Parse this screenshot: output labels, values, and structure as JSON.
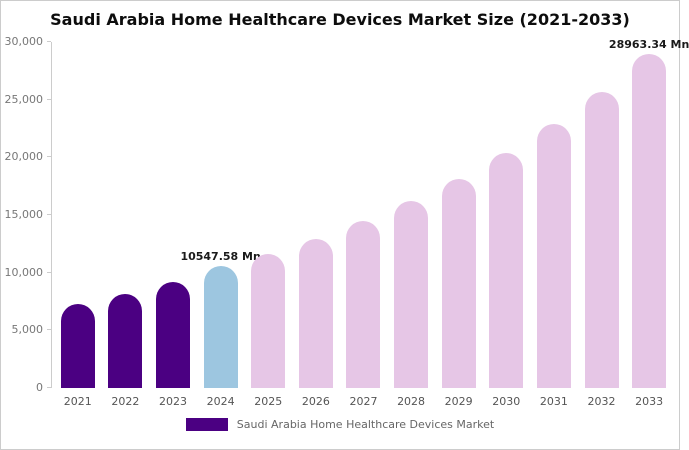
{
  "title": "Saudi Arabia Home Healthcare Devices Market Size (2021-2033)",
  "legend": {
    "label": "Saudi Arabia Home Healthcare Devices Market",
    "swatch_color": "#4B0082"
  },
  "chart_data": {
    "type": "bar",
    "title": "Saudi Arabia Home Healthcare Devices Market Size (2021-2033)",
    "categories": [
      "2021",
      "2022",
      "2023",
      "2024",
      "2025",
      "2026",
      "2027",
      "2028",
      "2029",
      "2030",
      "2031",
      "2032",
      "2033"
    ],
    "values": [
      7250,
      8150,
      9200,
      10547.58,
      11650,
      12950,
      14450,
      16200,
      18150,
      20400,
      22850,
      25650,
      28963.34
    ],
    "xlabel": "",
    "ylabel": "",
    "ylim": [
      0,
      30000
    ],
    "ytick_step": 5000,
    "ytick_labels": [
      "0",
      "5,000",
      "10,000",
      "15,000",
      "20,000",
      "25,000",
      "30,000"
    ],
    "bar_colors": [
      "#4B0082",
      "#4B0082",
      "#4B0082",
      "#9DC6E0",
      "#E6C6E6",
      "#E6C6E6",
      "#E6C6E6",
      "#E6C6E6",
      "#E6C6E6",
      "#E6C6E6",
      "#E6C6E6",
      "#E6C6E6",
      "#E6C6E6"
    ],
    "annotations": [
      {
        "index": 3,
        "category": "2024",
        "text": "10547.58 Mn"
      },
      {
        "index": 12,
        "category": "2033",
        "text": "28963.34 Mn"
      }
    ],
    "grid": false,
    "legend_position": "bottom"
  }
}
